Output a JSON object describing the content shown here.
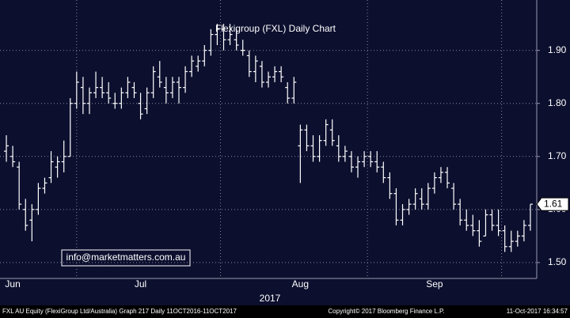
{
  "chart_data": {
    "type": "ohlc",
    "title": "Flexigroup (FXL) Daily Chart",
    "watermark": "info@marketmatters.com.au",
    "year_label": "2017",
    "last_price": 1.61,
    "categories": [
      null,
      "Jun",
      null,
      null,
      null,
      null,
      null,
      null,
      null,
      null,
      null,
      null,
      null,
      null,
      null,
      null,
      null,
      null,
      null,
      null,
      null,
      "Jul",
      null,
      null,
      null,
      null,
      null,
      null,
      null,
      null,
      null,
      null,
      null,
      null,
      null,
      null,
      null,
      null,
      null,
      null,
      null,
      null,
      null,
      null,
      null,
      null,
      "Aug",
      null,
      null,
      null,
      null,
      null,
      null,
      null,
      null,
      null,
      null,
      null,
      null,
      null,
      null,
      null,
      null,
      null,
      null,
      null,
      null,
      "Sep",
      null,
      null,
      null,
      null,
      null,
      null,
      null,
      null,
      null,
      null,
      null,
      null,
      null,
      null,
      null
    ],
    "open": [
      1.71,
      1.7,
      1.68,
      1.6,
      1.58,
      1.6,
      1.64,
      1.66,
      1.68,
      1.69,
      1.7,
      1.8,
      1.83,
      1.8,
      1.82,
      1.83,
      1.82,
      1.8,
      1.8,
      1.82,
      1.83,
      1.8,
      1.79,
      1.82,
      1.85,
      1.83,
      1.82,
      1.84,
      1.83,
      1.86,
      1.87,
      1.88,
      1.9,
      1.93,
      1.94,
      1.92,
      1.92,
      1.9,
      1.89,
      1.86,
      1.87,
      1.84,
      1.85,
      1.86,
      1.83,
      1.81,
      1.72,
      1.75,
      1.72,
      1.7,
      1.73,
      1.75,
      1.72,
      1.7,
      1.7,
      1.68,
      1.69,
      1.7,
      1.69,
      1.68,
      1.66,
      1.63,
      1.58,
      1.6,
      1.61,
      1.62,
      1.61,
      1.64,
      1.66,
      1.67,
      1.64,
      1.61,
      1.58,
      1.57,
      1.56,
      1.55,
      1.59,
      1.57,
      1.56,
      1.53,
      1.54,
      1.55,
      1.57
    ],
    "high": [
      1.74,
      1.72,
      1.69,
      1.62,
      1.61,
      1.65,
      1.66,
      1.71,
      1.7,
      1.73,
      1.81,
      1.86,
      1.85,
      1.83,
      1.86,
      1.85,
      1.84,
      1.82,
      1.83,
      1.85,
      1.84,
      1.82,
      1.83,
      1.87,
      1.88,
      1.85,
      1.85,
      1.85,
      1.87,
      1.89,
      1.89,
      1.91,
      1.94,
      1.95,
      1.95,
      1.95,
      1.94,
      1.92,
      1.9,
      1.89,
      1.88,
      1.86,
      1.87,
      1.87,
      1.84,
      1.85,
      1.76,
      1.76,
      1.74,
      1.74,
      1.77,
      1.77,
      1.74,
      1.72,
      1.71,
      1.7,
      1.71,
      1.71,
      1.71,
      1.69,
      1.67,
      1.64,
      1.61,
      1.62,
      1.64,
      1.64,
      1.65,
      1.67,
      1.68,
      1.68,
      1.65,
      1.62,
      1.6,
      1.59,
      1.58,
      1.6,
      1.6,
      1.6,
      1.57,
      1.56,
      1.56,
      1.58,
      1.61
    ],
    "low": [
      1.69,
      1.68,
      1.6,
      1.56,
      1.54,
      1.59,
      1.63,
      1.65,
      1.66,
      1.67,
      1.7,
      1.79,
      1.78,
      1.78,
      1.81,
      1.81,
      1.8,
      1.79,
      1.79,
      1.81,
      1.81,
      1.77,
      1.78,
      1.81,
      1.83,
      1.8,
      1.81,
      1.8,
      1.82,
      1.85,
      1.86,
      1.87,
      1.89,
      1.91,
      1.9,
      1.91,
      1.9,
      1.89,
      1.85,
      1.84,
      1.83,
      1.83,
      1.84,
      1.84,
      1.8,
      1.8,
      1.65,
      1.71,
      1.69,
      1.69,
      1.72,
      1.72,
      1.69,
      1.69,
      1.67,
      1.66,
      1.68,
      1.68,
      1.67,
      1.65,
      1.62,
      1.57,
      1.57,
      1.59,
      1.6,
      1.6,
      1.6,
      1.63,
      1.65,
      1.64,
      1.6,
      1.57,
      1.56,
      1.55,
      1.53,
      1.55,
      1.56,
      1.55,
      1.52,
      1.52,
      1.53,
      1.54,
      1.56
    ],
    "close": [
      1.72,
      1.69,
      1.61,
      1.57,
      1.6,
      1.64,
      1.65,
      1.69,
      1.69,
      1.7,
      1.8,
      1.84,
      1.8,
      1.82,
      1.83,
      1.82,
      1.81,
      1.8,
      1.82,
      1.84,
      1.82,
      1.78,
      1.82,
      1.86,
      1.84,
      1.82,
      1.84,
      1.83,
      1.86,
      1.88,
      1.88,
      1.9,
      1.93,
      1.94,
      1.92,
      1.93,
      1.91,
      1.9,
      1.86,
      1.88,
      1.84,
      1.85,
      1.86,
      1.85,
      1.81,
      1.84,
      1.75,
      1.72,
      1.7,
      1.73,
      1.76,
      1.73,
      1.7,
      1.71,
      1.68,
      1.69,
      1.7,
      1.69,
      1.68,
      1.66,
      1.63,
      1.58,
      1.6,
      1.61,
      1.63,
      1.61,
      1.64,
      1.66,
      1.67,
      1.65,
      1.61,
      1.58,
      1.57,
      1.56,
      1.54,
      1.59,
      1.57,
      1.56,
      1.53,
      1.54,
      1.55,
      1.57,
      1.61
    ],
    "color": "#ffffff",
    "title_color": "#7fe07f",
    "ylim": [
      1.47,
      1.995
    ],
    "yticks": [
      {
        "value": 1.5,
        "label": "1.50"
      },
      {
        "value": 1.6,
        "label": "1.60"
      },
      {
        "value": 1.7,
        "label": "1.70"
      },
      {
        "value": 1.8,
        "label": "1.80"
      },
      {
        "value": 1.9,
        "label": "1.90"
      }
    ],
    "grid": true,
    "footer": {
      "left": "FXL AU Equity (FlexiGroup Ltd/Australia) Graph 217  Daily 11OCT2016-11OCT2017",
      "center": "Copyright© 2017 Bloomberg Finance L.P.",
      "right": "11-Oct-2017 16:34:57"
    }
  }
}
